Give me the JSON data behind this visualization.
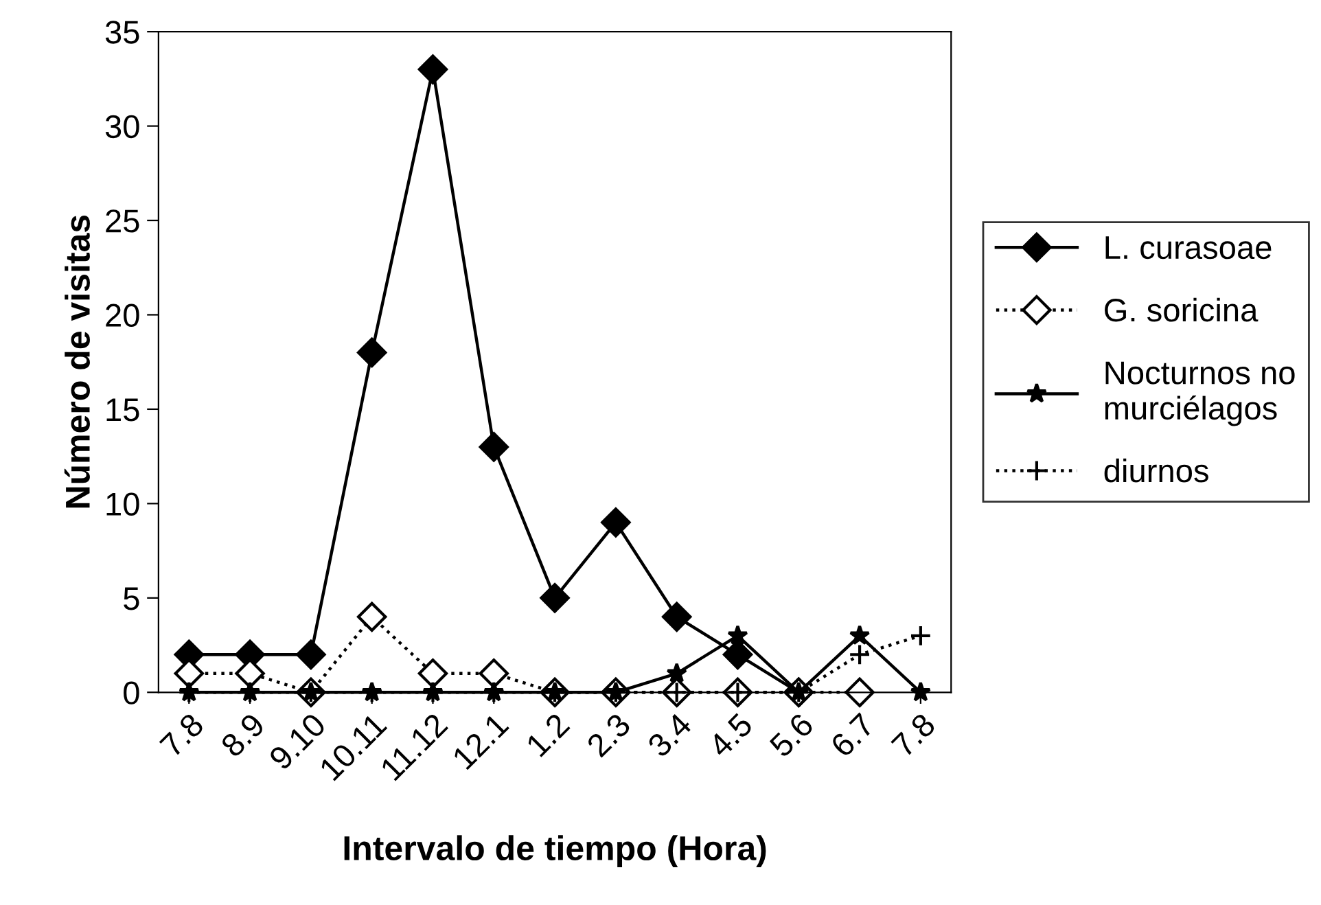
{
  "chart_data": {
    "type": "line",
    "xlabel": "Intervalo de tiempo (Hora)",
    "ylabel": "Número de visitas",
    "categories": [
      "7.8",
      "8.9",
      "9.10",
      "10.11",
      "11.12",
      "12.1",
      "1.2",
      "2.3",
      "3.4",
      "4.5",
      "5.6",
      "6.7",
      "7.8"
    ],
    "series": [
      {
        "name": "L. curasoae",
        "color": "#000000",
        "marker": "diamond",
        "line_style": "solid",
        "values": [
          2,
          2,
          2,
          18,
          33,
          13,
          5,
          9,
          4,
          2,
          0,
          null,
          null
        ]
      },
      {
        "name": "G. soricina",
        "color": "#000000",
        "marker": "diamond",
        "line_style": "dotted",
        "values": [
          1,
          1,
          0,
          4,
          1,
          1,
          0,
          0,
          0,
          0,
          0,
          0,
          null
        ]
      },
      {
        "name": "Nocturnos no\nmurciélagos",
        "color": "#000000",
        "marker": "star",
        "line_style": "solid",
        "values": [
          0,
          0,
          0,
          0,
          0,
          0,
          0,
          0,
          1,
          3,
          0,
          3,
          0
        ]
      },
      {
        "name": "diurnos",
        "color": "#000000",
        "marker": "cross",
        "line_style": "dotted",
        "values": [
          0,
          0,
          0,
          0,
          0,
          0,
          0,
          0,
          0,
          0,
          0,
          2,
          3
        ]
      }
    ],
    "ylim": [
      0,
      35
    ],
    "yticks": [
      0,
      5,
      10,
      15,
      20,
      25,
      30,
      35
    ],
    "grid": false,
    "legend": "right"
  }
}
